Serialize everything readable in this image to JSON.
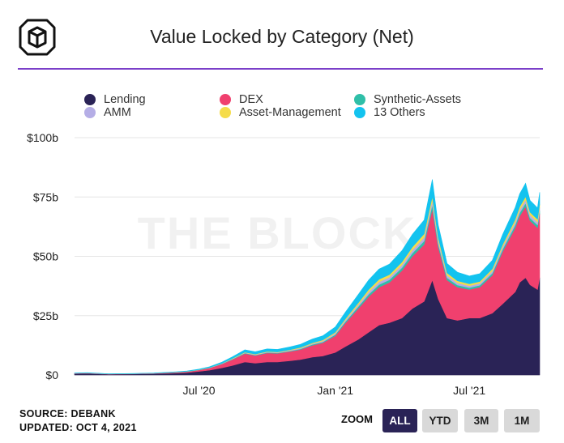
{
  "title": "Value Locked by Category (Net)",
  "source": "SOURCE: DEBANK",
  "updated": "UPDATED: OCT 4, 2021",
  "watermark": "THE BLOCK",
  "zoom": {
    "label": "ZOOM",
    "buttons": [
      "ALL",
      "YTD",
      "3M",
      "1M"
    ],
    "active": "ALL"
  },
  "chart_data": {
    "type": "area",
    "stacked": true,
    "x_dates": [
      "2020-01-15",
      "2020-02-01",
      "2020-03-01",
      "2020-04-01",
      "2020-05-01",
      "2020-06-01",
      "2020-06-15",
      "2020-07-01",
      "2020-07-15",
      "2020-08-01",
      "2020-08-15",
      "2020-09-01",
      "2020-09-15",
      "2020-10-01",
      "2020-10-15",
      "2020-11-01",
      "2020-11-15",
      "2020-12-01",
      "2020-12-15",
      "2021-01-01",
      "2021-01-15",
      "2021-02-01",
      "2021-02-15",
      "2021-03-01",
      "2021-03-15",
      "2021-04-01",
      "2021-04-15",
      "2021-05-01",
      "2021-05-12",
      "2021-05-20",
      "2021-06-01",
      "2021-06-15",
      "2021-07-01",
      "2021-07-15",
      "2021-08-01",
      "2021-08-15",
      "2021-09-01",
      "2021-09-07",
      "2021-09-15",
      "2021-09-21",
      "2021-10-01",
      "2021-10-04"
    ],
    "series": [
      {
        "name": "Lending",
        "color": "#2a2356",
        "values": [
          0.5,
          0.6,
          0.3,
          0.4,
          0.5,
          0.8,
          1.0,
          1.5,
          2.0,
          3.0,
          4.0,
          5.5,
          5.0,
          5.5,
          5.5,
          6.0,
          6.5,
          7.5,
          8.0,
          9.5,
          12,
          15,
          18,
          21,
          22,
          24,
          28,
          31,
          40,
          32,
          24,
          23,
          24,
          24,
          26,
          30,
          35,
          39,
          41,
          38,
          36,
          41
        ]
      },
      {
        "name": "DEX",
        "color": "#f0406e",
        "values": [
          0.2,
          0.2,
          0.1,
          0.1,
          0.2,
          0.3,
          0.4,
          0.6,
          0.9,
          1.6,
          2.5,
          3.5,
          3.2,
          3.8,
          3.6,
          3.9,
          4.2,
          5.0,
          5.5,
          7,
          10,
          13,
          15,
          16,
          17,
          20,
          22,
          24,
          30,
          22,
          16,
          14,
          12,
          13,
          16,
          22,
          27,
          28,
          30,
          27,
          26,
          27
        ]
      },
      {
        "name": "Synthetic-Assets",
        "color": "#2fbfa8",
        "values": [
          0.02,
          0.02,
          0.02,
          0.02,
          0.02,
          0.05,
          0.05,
          0.05,
          0.08,
          0.1,
          0.15,
          0.2,
          0.2,
          0.2,
          0.2,
          0.25,
          0.3,
          0.35,
          0.4,
          0.5,
          0.6,
          0.8,
          1.0,
          1.1,
          1.1,
          1.2,
          1.3,
          1.5,
          1.8,
          1.3,
          1.0,
          0.9,
          0.8,
          0.8,
          0.9,
          1.0,
          1.2,
          1.3,
          1.4,
          1.2,
          1.2,
          1.3
        ]
      },
      {
        "name": "AMM",
        "color": "#b5aee6",
        "values": [
          0.02,
          0.02,
          0.02,
          0.02,
          0.02,
          0.05,
          0.05,
          0.05,
          0.08,
          0.1,
          0.15,
          0.2,
          0.2,
          0.2,
          0.2,
          0.25,
          0.3,
          0.35,
          0.4,
          0.5,
          0.6,
          0.8,
          1.0,
          1.1,
          1.1,
          1.2,
          1.3,
          1.5,
          1.7,
          1.3,
          1.0,
          0.9,
          0.8,
          0.8,
          0.9,
          1.0,
          1.2,
          1.3,
          1.4,
          1.2,
          1.2,
          1.3
        ]
      },
      {
        "name": "Asset-Management",
        "color": "#f5dc4a",
        "values": [
          0.02,
          0.02,
          0.02,
          0.02,
          0.02,
          0.05,
          0.05,
          0.05,
          0.08,
          0.1,
          0.15,
          0.2,
          0.2,
          0.2,
          0.2,
          0.25,
          0.3,
          0.35,
          0.4,
          0.5,
          0.6,
          0.8,
          1.0,
          1.1,
          1.1,
          1.2,
          1.3,
          1.5,
          1.7,
          1.3,
          1.0,
          0.9,
          0.8,
          0.8,
          0.9,
          1.0,
          1.2,
          1.3,
          1.4,
          1.2,
          1.2,
          1.3
        ]
      },
      {
        "name": "13 Others",
        "color": "#13c3ef",
        "values": [
          0.1,
          0.1,
          0.06,
          0.06,
          0.1,
          0.1,
          0.12,
          0.2,
          0.3,
          0.5,
          0.7,
          1.0,
          1.0,
          1.1,
          1.1,
          1.2,
          1.3,
          1.6,
          1.8,
          2.2,
          2.8,
          3.5,
          4.0,
          4.3,
          4.4,
          4.8,
          5.3,
          5.8,
          7.2,
          5.3,
          4.0,
          3.6,
          3.3,
          3.3,
          3.6,
          4.2,
          5.0,
          5.4,
          5.6,
          5.0,
          4.8,
          5.1
        ]
      }
    ],
    "x_ticks": [
      {
        "label": "Jul '20",
        "date": "2020-07-01"
      },
      {
        "label": "Jan '21",
        "date": "2021-01-01"
      },
      {
        "label": "Jul '21",
        "date": "2021-07-01"
      }
    ],
    "y_ticks": [
      {
        "label": "$0",
        "value": 0
      },
      {
        "label": "$25b",
        "value": 25
      },
      {
        "label": "$50b",
        "value": 50
      },
      {
        "label": "$75b",
        "value": 75
      },
      {
        "label": "$100b",
        "value": 100
      }
    ],
    "ylim": [
      0,
      100
    ],
    "xlim": [
      "2020-01-15",
      "2021-10-04"
    ],
    "grid": "horizontal",
    "legend_position": "top"
  }
}
